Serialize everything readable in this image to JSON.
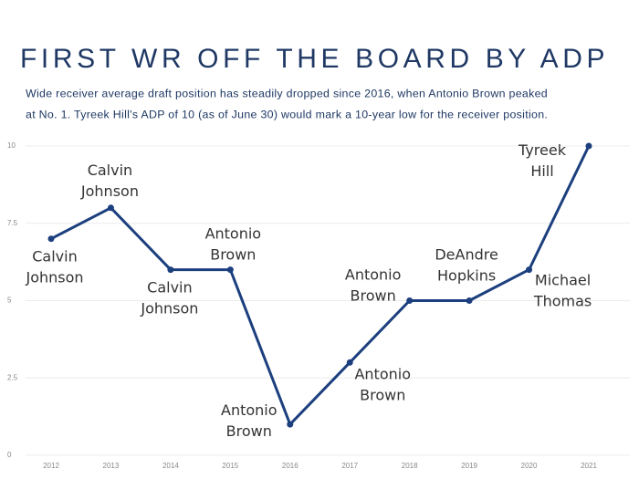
{
  "chart_data": {
    "type": "line",
    "title": "FIRST WR OFF THE BOARD BY ADP",
    "subtitle": [
      "Wide receiver average draft position has steadily dropped since 2016, when Antonio Brown peaked",
      "at No. 1. Tyreek Hill's ADP of 10 (as of June 30) would mark a 10-year low for the receiver position."
    ],
    "categories": [
      "2012",
      "2013",
      "2014",
      "2015",
      "2016",
      "2017",
      "2018",
      "2019",
      "2020",
      "2021"
    ],
    "values": [
      7,
      8,
      6,
      6,
      1,
      3,
      5,
      5,
      6,
      10
    ],
    "value_labels": [
      [
        "Calvin",
        "Johnson"
      ],
      [
        "Calvin",
        "Johnson"
      ],
      [
        "Calvin",
        "Johnson"
      ],
      [
        "Antonio",
        "Brown"
      ],
      [
        "Antonio",
        "Brown"
      ],
      [
        "Antonio",
        "Brown"
      ],
      [
        "Antonio",
        "Brown"
      ],
      [
        "DeAndre",
        "Hopkins"
      ],
      [
        "Michael",
        "Thomas"
      ],
      [
        "Tyreek",
        "Hill"
      ]
    ],
    "color": "#1c3f7e",
    "ylim": [
      0,
      10
    ],
    "yticks": [
      0,
      2.5,
      5,
      7.5,
      10
    ],
    "grid": true
  }
}
